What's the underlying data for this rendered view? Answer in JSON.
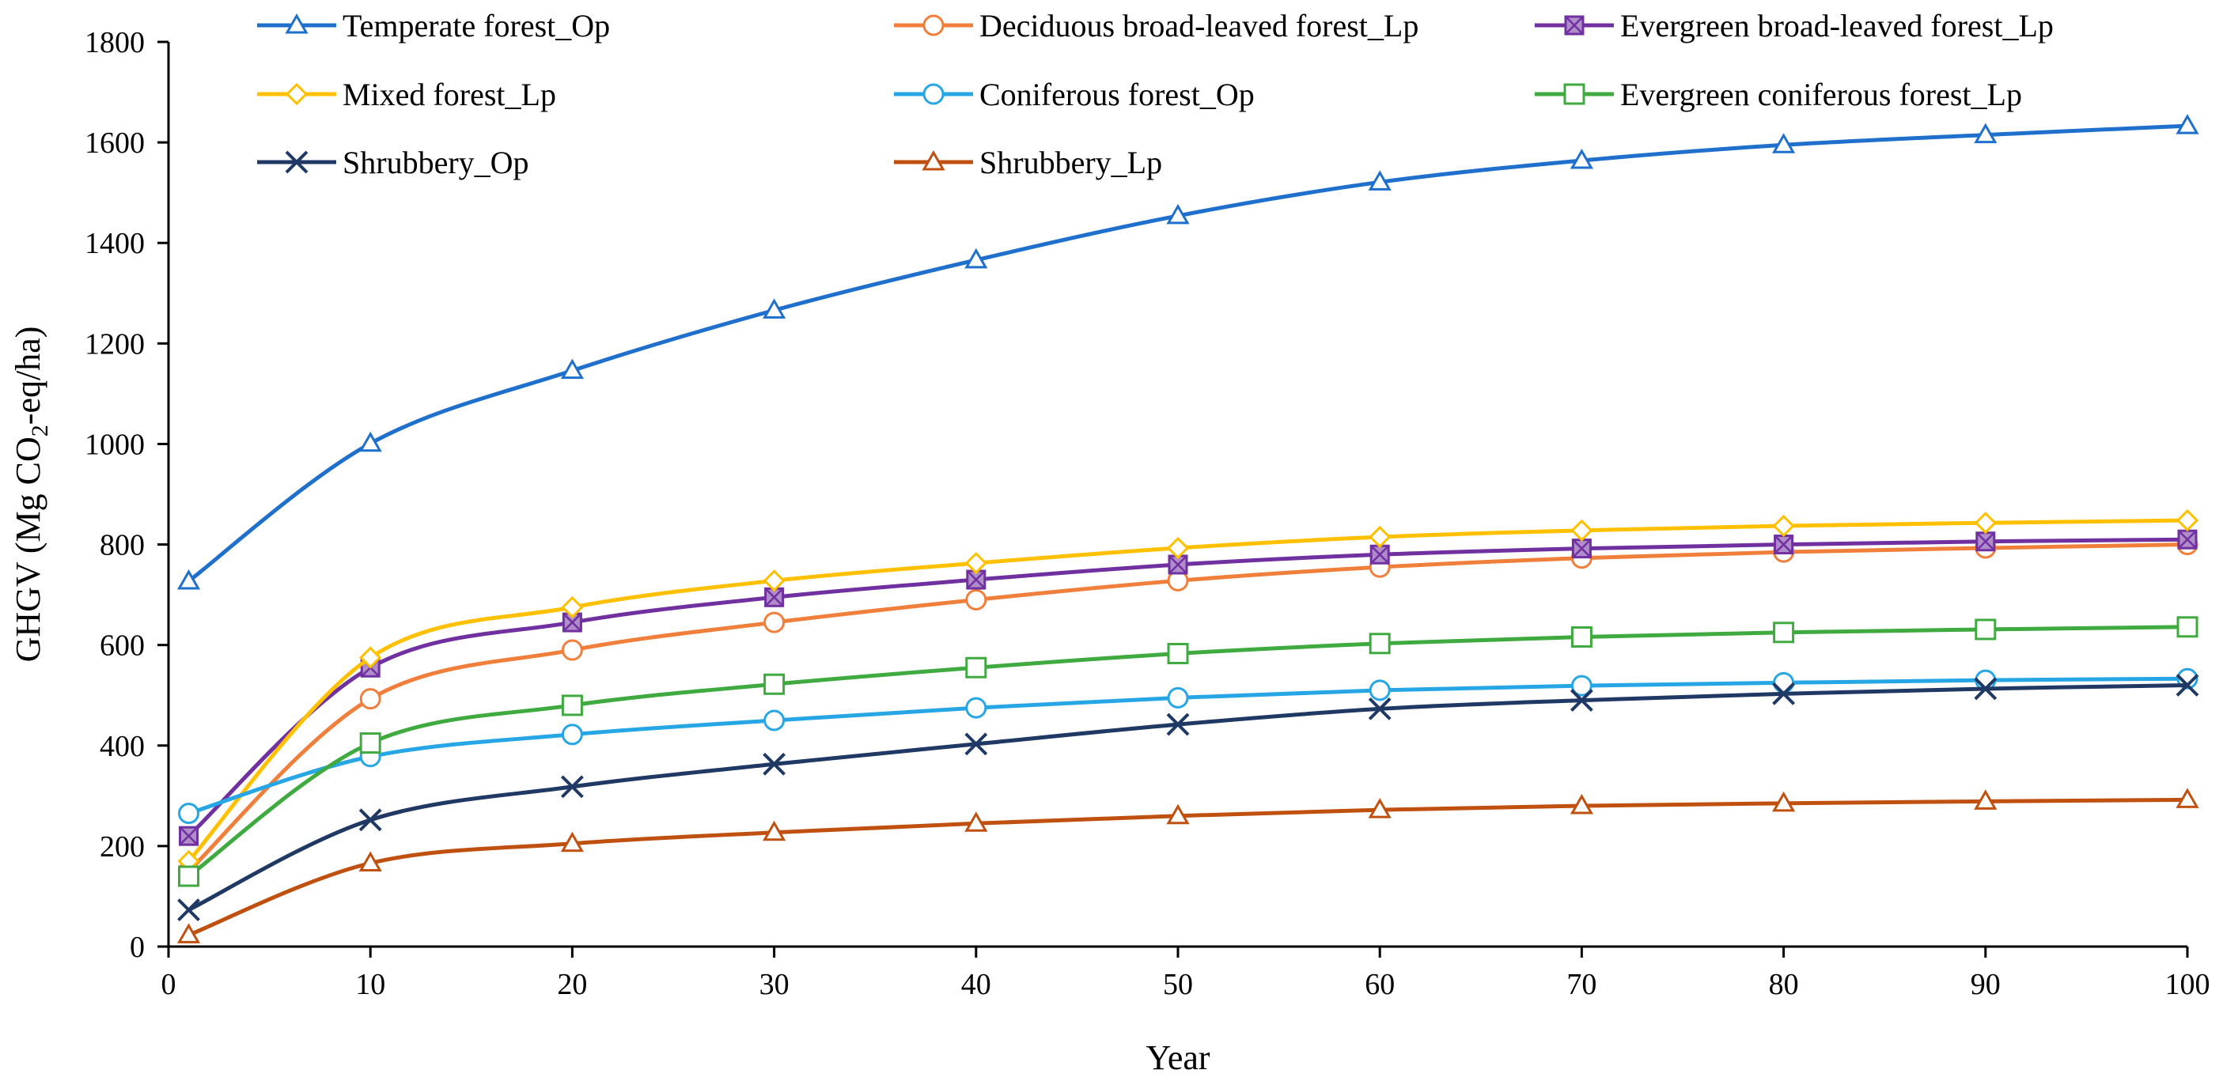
{
  "chart_data": {
    "type": "line",
    "xlabel": "Year",
    "ylabel_parts": {
      "pre": "GHGV (Mg CO",
      "sub": "2",
      "post": "-eq/ha)"
    },
    "xlim": [
      0,
      100
    ],
    "ylim": [
      0,
      1800
    ],
    "xticks": [
      0,
      10,
      20,
      30,
      40,
      50,
      60,
      70,
      80,
      90,
      100
    ],
    "yticks": [
      0,
      200,
      400,
      600,
      800,
      1000,
      1200,
      1400,
      1600,
      1800
    ],
    "x": [
      1,
      10,
      20,
      30,
      40,
      50,
      60,
      70,
      80,
      90,
      100
    ],
    "grid": false,
    "legend_position": "top",
    "series": [
      {
        "name": "Temperate forest_Op",
        "color": "#1F6FCC",
        "marker": "triangle",
        "values": [
          727,
          1001,
          1146,
          1266,
          1366,
          1454,
          1521,
          1564,
          1595,
          1615,
          1633
        ]
      },
      {
        "name": "Deciduous broad-leaved forest_Lp",
        "color": "#F07F3C",
        "marker": "circle",
        "values": [
          150,
          493,
          590,
          645,
          690,
          728,
          755,
          773,
          785,
          793,
          800
        ]
      },
      {
        "name": "Evergreen broad-leaved forest_Lp",
        "color": "#7030A0",
        "marker": "square-x",
        "values": [
          220,
          555,
          645,
          695,
          730,
          760,
          780,
          792,
          800,
          806,
          810
        ]
      },
      {
        "name": "Mixed forest_Lp",
        "color": "#FFC000",
        "marker": "diamond",
        "values": [
          170,
          575,
          675,
          728,
          763,
          793,
          815,
          828,
          837,
          843,
          848
        ]
      },
      {
        "name": "Coniferous forest_Op",
        "color": "#27A6E5",
        "marker": "circle",
        "values": [
          265,
          378,
          422,
          450,
          475,
          495,
          510,
          519,
          525,
          530,
          533
        ]
      },
      {
        "name": "Evergreen coniferous forest_Lp",
        "color": "#3FAA3F",
        "marker": "square",
        "values": [
          140,
          405,
          480,
          522,
          555,
          583,
          603,
          616,
          625,
          631,
          636
        ]
      },
      {
        "name": "Shrubbery_Op",
        "color": "#1F3864",
        "marker": "x",
        "values": [
          73,
          252,
          318,
          363,
          403,
          442,
          473,
          490,
          503,
          513,
          520
        ]
      },
      {
        "name": "Shrubbery_Lp",
        "color": "#C0500F",
        "marker": "triangle",
        "values": [
          23,
          166,
          205,
          227,
          245,
          260,
          272,
          280,
          285,
          289,
          292
        ]
      }
    ]
  }
}
